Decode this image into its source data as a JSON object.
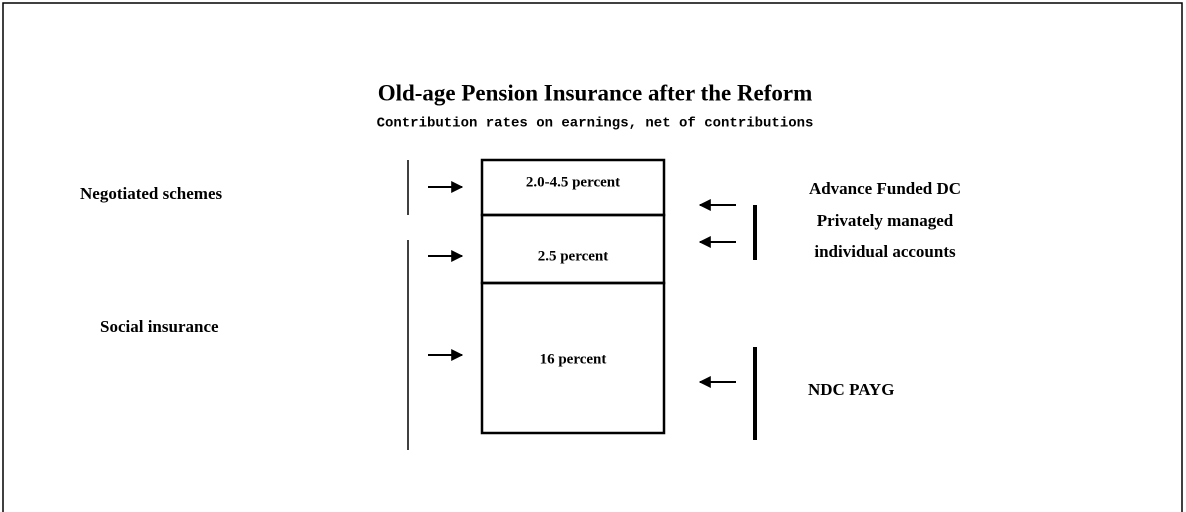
{
  "title": "Old-age Pension Insurance after the Reform",
  "subtitle": "Contribution rates on earnings, net of contributions",
  "left_labels": [
    "Negotiated schemes",
    "Social insurance"
  ],
  "boxes": [
    {
      "label": "2.0-4.5 percent"
    },
    {
      "label": "2.5 percent"
    },
    {
      "label": "16 percent"
    }
  ],
  "right_labels": {
    "funded": [
      "Advance Funded DC",
      "Privately managed",
      "individual accounts"
    ],
    "paygo": "NDC PAYG"
  }
}
